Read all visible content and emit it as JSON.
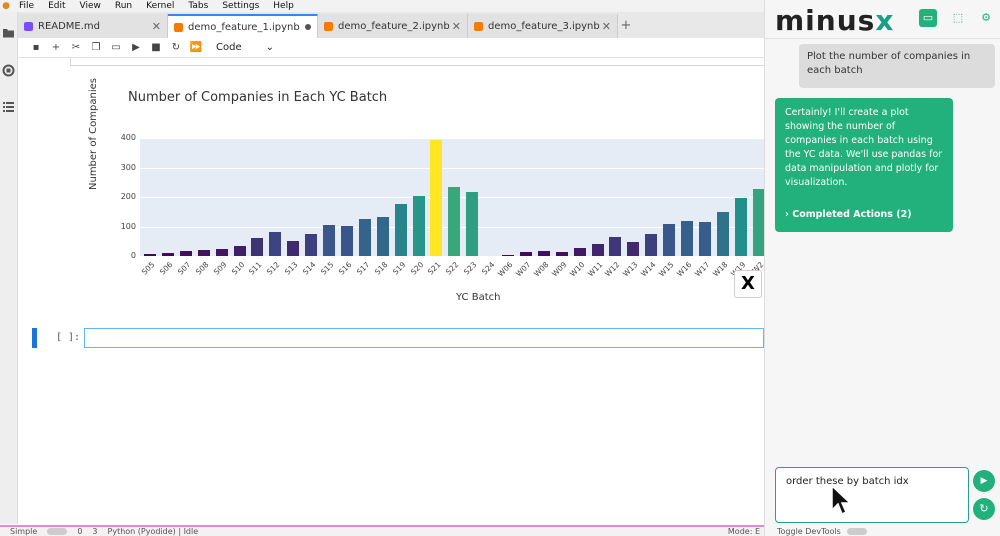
{
  "menubar": {
    "items": [
      "File",
      "Edit",
      "View",
      "Run",
      "Kernel",
      "Tabs",
      "Settings",
      "Help"
    ]
  },
  "tabs": [
    {
      "label": "README.md",
      "icon": "markdown-icon",
      "state": "close"
    },
    {
      "label": "demo_feature_1.ipynb",
      "icon": "notebook-icon",
      "state": "modified"
    },
    {
      "label": "demo_feature_2.ipynb",
      "icon": "notebook-icon",
      "state": "close"
    },
    {
      "label": "demo_feature_3.ipynb",
      "icon": "notebook-icon",
      "state": "close"
    }
  ],
  "toolbar": {
    "cell_type": "Code"
  },
  "cell": {
    "prompt": "[ ]:"
  },
  "chart_data": {
    "type": "bar",
    "title": "Number of Companies in Each YC Batch",
    "xlabel": "YC Batch",
    "ylabel": "Number of Companies",
    "ylim": [
      0,
      400
    ],
    "yticks": [
      "0",
      "100",
      "200",
      "300",
      "400"
    ],
    "categories": [
      "S05",
      "S06",
      "S07",
      "S08",
      "S09",
      "S10",
      "S11",
      "S12",
      "S13",
      "S14",
      "S15",
      "S16",
      "S17",
      "S18",
      "S19",
      "S20",
      "S21",
      "S22",
      "S23",
      "S24",
      "W06",
      "W07",
      "W08",
      "W09",
      "W10",
      "W11",
      "W12",
      "W13",
      "W14",
      "W15",
      "W16",
      "W17",
      "W18",
      "W19",
      "W2"
    ],
    "values": [
      8,
      10,
      17,
      20,
      25,
      35,
      60,
      82,
      50,
      75,
      105,
      102,
      125,
      132,
      175,
      205,
      392,
      235,
      218,
      0,
      5,
      12,
      18,
      15,
      28,
      42,
      65,
      48,
      75,
      108,
      120,
      115,
      148,
      195,
      228
    ],
    "colorscale": "viridis",
    "grid": true
  },
  "minusx": {
    "brand_left": "minus",
    "brand_right": "x",
    "user_message": "Plot the number of companies in each batch",
    "bot_message": "Certainly! I'll create a plot showing the number of companies in each batch using the YC data. We'll use pandas for data manipulation and plotly for visualization.",
    "completed_actions": "Completed Actions (2)",
    "input_value": "order these by batch idx",
    "toggle_devtools": "Toggle DevTools",
    "colors": {
      "accent": "#22b07d"
    }
  },
  "statusbar": {
    "mode": "Simple",
    "kernel": "Python (Pyodide) | Idle",
    "counts": [
      "0",
      "3"
    ],
    "mode_right": "Mode: E"
  },
  "close_overlay": "X"
}
